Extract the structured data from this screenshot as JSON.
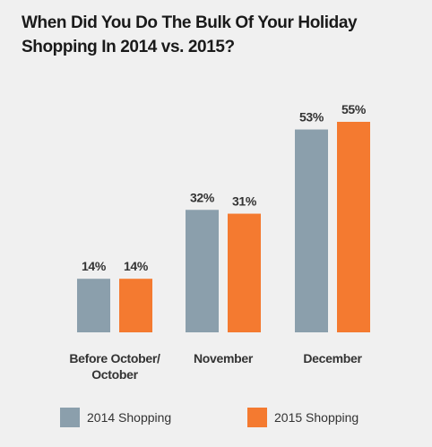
{
  "chart_data": {
    "type": "bar",
    "title_lines": [
      "When Did You Do The Bulk Of Your Holiday",
      "Shopping In 2014 vs. 2015?"
    ],
    "categories": [
      [
        "Before October/",
        "October"
      ],
      [
        "November"
      ],
      [
        "December"
      ]
    ],
    "series": [
      {
        "name": "2014 Shopping",
        "values": [
          14,
          32,
          53
        ],
        "labels": [
          "14%",
          "32%",
          "53%"
        ],
        "color": "#8b9fac"
      },
      {
        "name": "2015 Shopping",
        "values": [
          14,
          31,
          55
        ],
        "labels": [
          "14%",
          "31%",
          "55%"
        ],
        "color": "#f47a30"
      }
    ],
    "ylim": [
      0,
      55
    ],
    "grid": false,
    "legend_position": "bottom"
  }
}
